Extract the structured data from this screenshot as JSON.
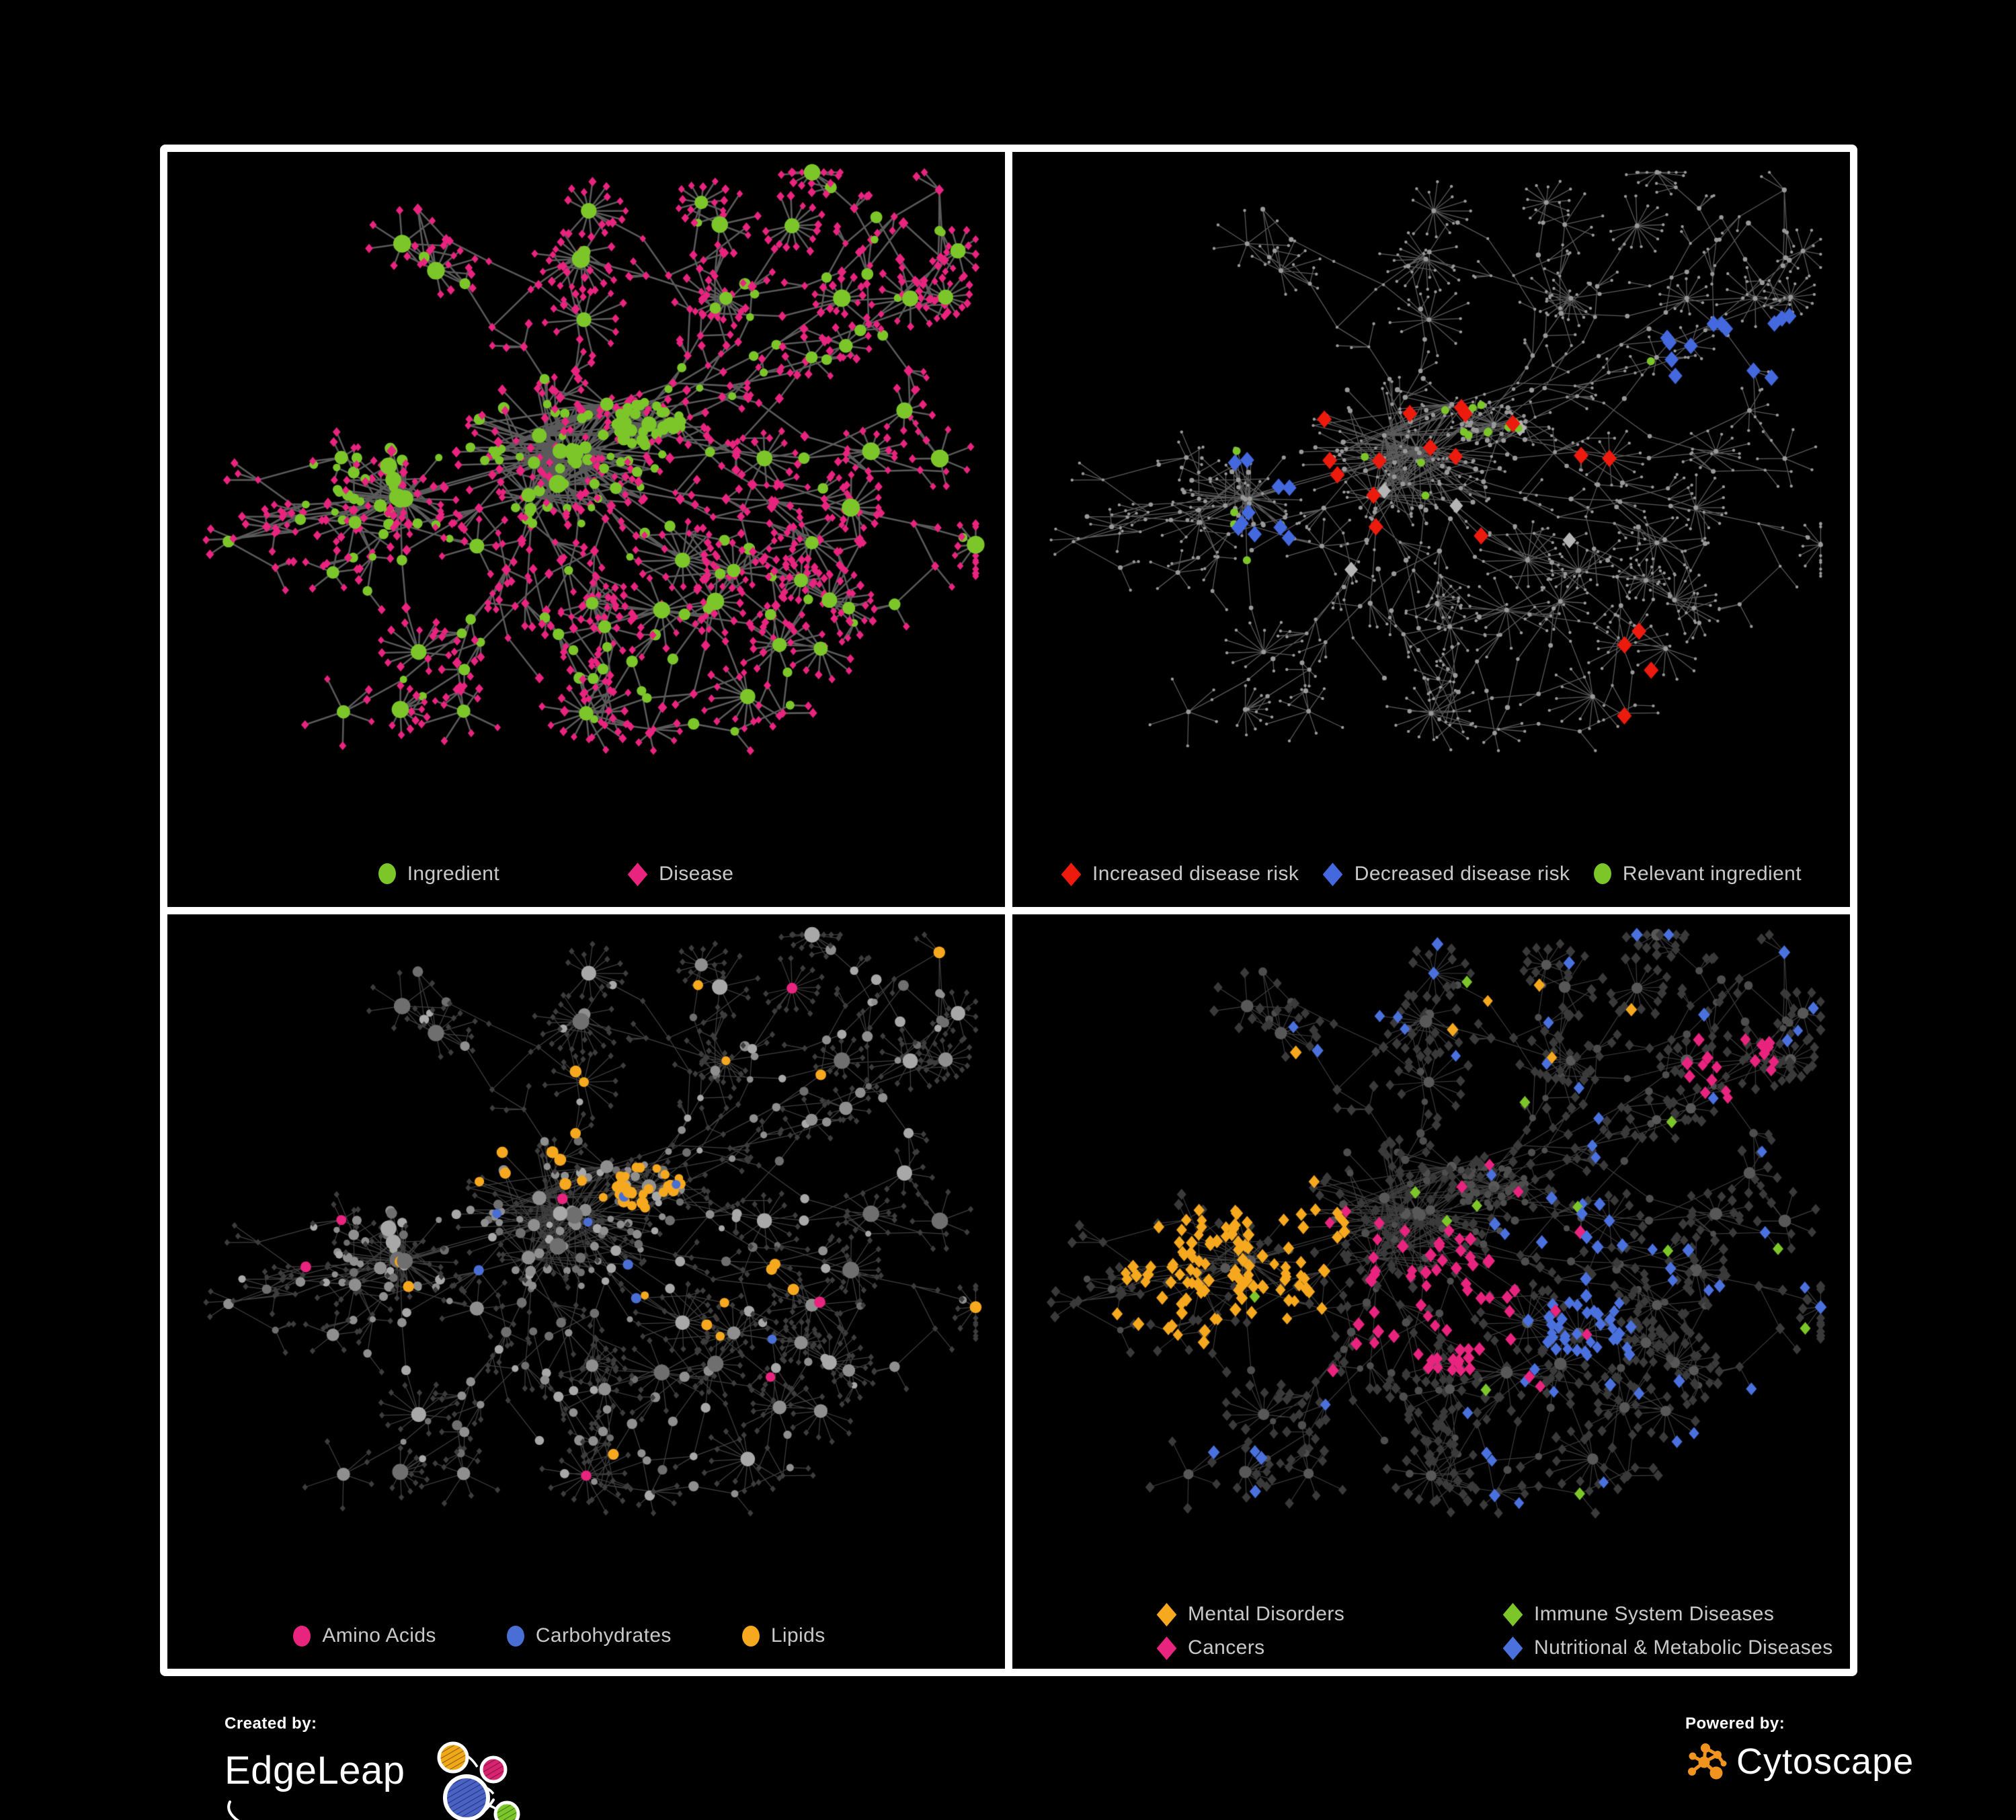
{
  "page": {
    "background": "#000000",
    "frame_color": "#ffffff"
  },
  "panels": [
    {
      "id": "ingredient-disease",
      "legend": [
        {
          "label": "Ingredient",
          "shape": "circle",
          "color": "#7cc62a"
        },
        {
          "label": "Disease",
          "shape": "diamond",
          "color": "#e8247f"
        }
      ]
    },
    {
      "id": "disease-risk",
      "legend": [
        {
          "label": "Increased disease risk",
          "shape": "diamond",
          "color": "#ed1a0e"
        },
        {
          "label": "Decreased disease risk",
          "shape": "diamond",
          "color": "#4468dd"
        },
        {
          "label": "Relevant ingredient",
          "shape": "circle",
          "color": "#7cc62a"
        }
      ]
    },
    {
      "id": "nutrient-classes",
      "legend": [
        {
          "label": "Amino Acids",
          "shape": "circle",
          "color": "#e8247f"
        },
        {
          "label": "Carbohydrates",
          "shape": "circle",
          "color": "#4a6fd4"
        },
        {
          "label": "Lipids",
          "shape": "circle",
          "color": "#f6a81e"
        }
      ]
    },
    {
      "id": "disease-classes",
      "legend": [
        {
          "label": "Mental Disorders",
          "shape": "diamond",
          "color": "#f6a81e"
        },
        {
          "label": "Immune System Diseases",
          "shape": "diamond",
          "color": "#7cc62a"
        },
        {
          "label": "Cancers",
          "shape": "diamond",
          "color": "#e8247f"
        },
        {
          "label": "Nutritional & Metabolic Diseases",
          "shape": "diamond",
          "color": "#4a71dd"
        }
      ]
    }
  ],
  "footer": {
    "created_by_label": "Created by:",
    "created_by_brand": "EdgeLeap",
    "powered_by_label": "Powered by:",
    "powered_by_brand": "Cytoscape",
    "cytoscape_orange": "#f0941f",
    "edgeleap_node_colors": [
      "#f0a818",
      "#d6246e",
      "#4a62c4",
      "#7cc62a"
    ]
  },
  "network_style": {
    "p1": {
      "edge": "rgba(100,100,100,0.9)",
      "ingredient": "#7cc62a",
      "disease": "#e8247f"
    },
    "p2": {
      "edge": "rgba(130,130,130,0.7)",
      "base": "#9a9a9a",
      "increased": "#ed1a0e",
      "decreased": "#4468dd",
      "unchanged": "#b5b5b5",
      "relevant": "#7cc62a"
    },
    "p3": {
      "edge": "rgba(128,128,128,0.5)",
      "base": "#979797",
      "leaf": "#3d3d3d",
      "amino": "#e8247f",
      "carb": "#4a6fd4",
      "lipid": "#f6a81e"
    },
    "p4": {
      "edge": "rgba(148,148,148,0.42)",
      "leaf": "#3a3a3a",
      "circle": "#4e4e4e",
      "mental": "#f6a81e",
      "immune": "#7cc62a",
      "cancer": "#e8247f",
      "nutri": "#4a71dd"
    }
  }
}
